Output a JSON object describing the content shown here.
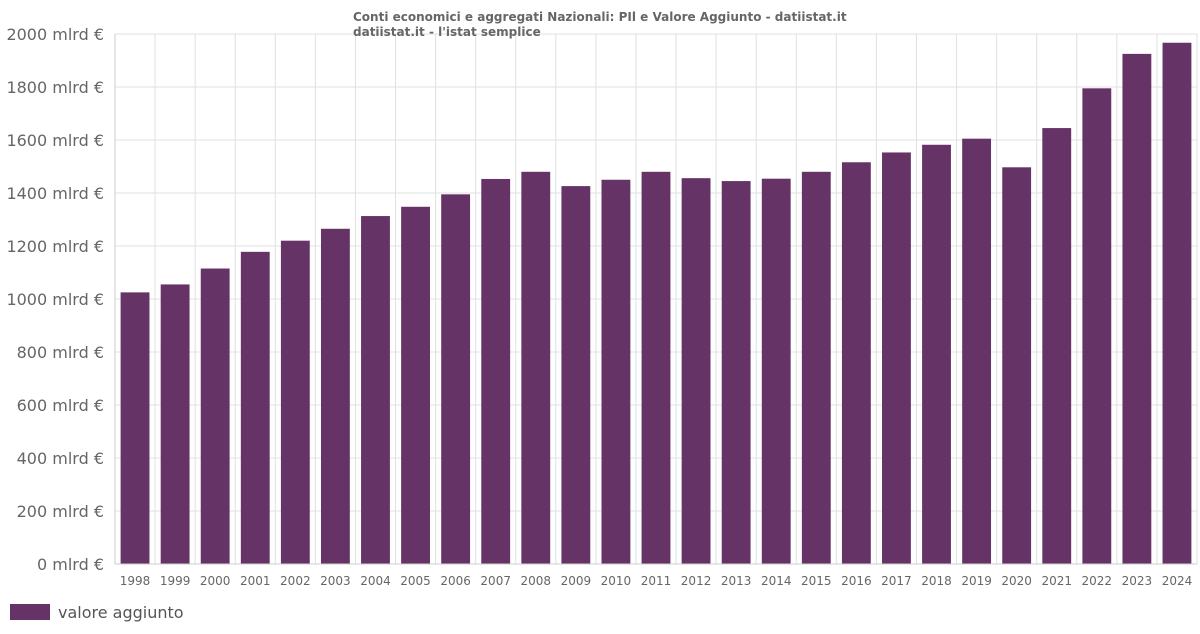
{
  "header": {
    "title": "Conti economici e aggregati Nazionali: PIl e Valore Aggiunto - datiistat.it",
    "subtitle": "datiistat.it - l'istat semplice"
  },
  "legend": {
    "label": "valore aggiunto"
  },
  "colors": {
    "bar": "#663366",
    "grid": "#e0e0e0",
    "axis": "#cccccc",
    "text": "#666666"
  },
  "chart_data": {
    "type": "bar",
    "title": "Conti economici e aggregati Nazionali: PIl e Valore Aggiunto - datiistat.it",
    "subtitle": "datiistat.it - l'istat semplice",
    "xlabel": "",
    "ylabel": "",
    "ylim": [
      0,
      2000
    ],
    "y_ticks": [
      0,
      200,
      400,
      600,
      800,
      1000,
      1200,
      1400,
      1600,
      1800,
      2000
    ],
    "y_tick_suffix": " mlrd €",
    "grid": true,
    "legend_position": "bottom-left",
    "categories": [
      "1998",
      "1999",
      "2000",
      "2001",
      "2002",
      "2003",
      "2004",
      "2005",
      "2006",
      "2007",
      "2008",
      "2009",
      "2010",
      "2011",
      "2012",
      "2013",
      "2014",
      "2015",
      "2016",
      "2017",
      "2018",
      "2019",
      "2020",
      "2021",
      "2022",
      "2023",
      "2024"
    ],
    "series": [
      {
        "name": "valore aggiunto",
        "values": [
          1025,
          1055,
          1115,
          1178,
          1220,
          1265,
          1313,
          1348,
          1395,
          1453,
          1480,
          1426,
          1450,
          1480,
          1456,
          1445,
          1454,
          1480,
          1516,
          1553,
          1582,
          1605,
          1497,
          1645,
          1795,
          1925,
          1967
        ]
      }
    ]
  }
}
